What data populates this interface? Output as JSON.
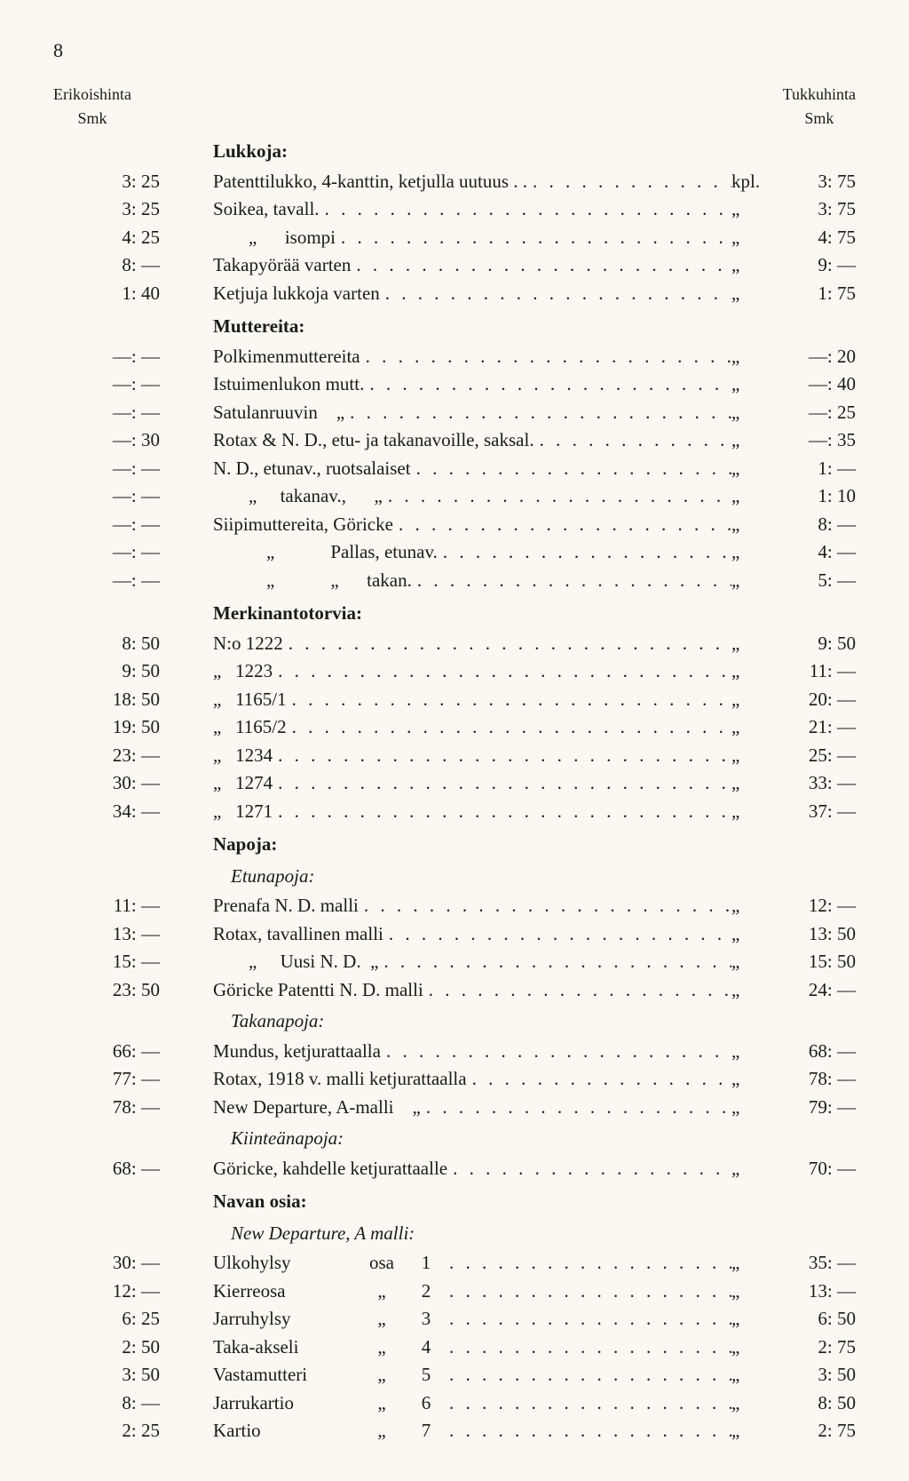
{
  "page_number": "8",
  "header_left_1": "Erikoishinta",
  "header_left_2": "Smk",
  "header_right_1": "Tukkuhinta",
  "header_right_2": "Smk",
  "sections": {
    "lukkoja": {
      "title": "Lukkoja:",
      "rows": [
        {
          "l": "3: 25",
          "d": "Patenttilukko, 4-kanttin, ketjulla uutuus . .",
          "u": "kpl.",
          "r": "3: 75"
        },
        {
          "l": "3: 25",
          "d": "Soikea, tavall.",
          "u": "„",
          "r": "3: 75"
        },
        {
          "l": "4: 25",
          "d": "„      isompi",
          "u": "„",
          "r": "4: 75",
          "indent": 1
        },
        {
          "l": "8: —",
          "d": "Takapyörää varten",
          "u": "„",
          "r": "9: —"
        },
        {
          "l": "1: 40",
          "d": "Ketjuja lukkoja varten",
          "u": "„",
          "r": "1: 75"
        }
      ]
    },
    "muttereita": {
      "title": "Muttereita:",
      "rows": [
        {
          "l": "—: —",
          "d": "Polkimenmuttereita",
          "u": "„",
          "r": "—: 20"
        },
        {
          "l": "—: —",
          "d": "Istuimenlukon mutt.",
          "u": "„",
          "r": "—: 40"
        },
        {
          "l": "—: —",
          "d": "Satulanruuvin    „",
          "u": "„",
          "r": "—: 25"
        },
        {
          "l": "—: 30",
          "d": "Rotax & N. D., etu- ja takanavoille, saksal.",
          "u": "„",
          "r": "—: 35"
        },
        {
          "l": "—: —",
          "d": "N. D., etunav., ruotsalaiset",
          "u": "„",
          "r": "1: —"
        },
        {
          "l": "—: —",
          "d": "„     takanav.,      „",
          "u": "„",
          "r": "1: 10",
          "indent": 1
        },
        {
          "l": "—: —",
          "d": "Siipimuttereita, Göricke",
          "u": "„",
          "r": "8: —"
        },
        {
          "l": "—: —",
          "d": "„            Pallas, etunav.",
          "u": "„",
          "r": "4: —",
          "indent": 2
        },
        {
          "l": "—: —",
          "d": "„            „      takan.",
          "u": "„",
          "r": "5: —",
          "indent": 2
        }
      ]
    },
    "merkinanto": {
      "title": "Merkinantotorvia:",
      "rows": [
        {
          "l": "8: 50",
          "d": "N:o 1222",
          "u": "„",
          "r": "9: 50"
        },
        {
          "l": "9: 50",
          "d": "„   1223",
          "u": "„",
          "r": "11: —"
        },
        {
          "l": "18: 50",
          "d": "„   1165/1",
          "u": "„",
          "r": "20: —"
        },
        {
          "l": "19: 50",
          "d": "„   1165/2",
          "u": "„",
          "r": "21: —"
        },
        {
          "l": "23: —",
          "d": "„   1234",
          "u": "„",
          "r": "25: —"
        },
        {
          "l": "30: —",
          "d": "„   1274",
          "u": "„",
          "r": "33: —"
        },
        {
          "l": "34: —",
          "d": "„   1271",
          "u": "„",
          "r": "37: —"
        }
      ]
    },
    "napoja": {
      "title": "Napoja:",
      "sub1": {
        "title": "Etunapoja:",
        "rows": [
          {
            "l": "11: —",
            "d": "Prenafa N. D. malli",
            "u": "„",
            "r": "12: —"
          },
          {
            "l": "13: —",
            "d": "Rotax, tavallinen malli",
            "u": "„",
            "r": "13: 50"
          },
          {
            "l": "15: —",
            "d": "„     Uusi N. D.  „",
            "u": "„",
            "r": "15: 50",
            "indent": 1
          },
          {
            "l": "23: 50",
            "d": "Göricke Patentti N. D. malli",
            "u": "„",
            "r": "24: —"
          }
        ]
      },
      "sub2": {
        "title": "Takanapoja:",
        "rows": [
          {
            "l": "66: —",
            "d": "Mundus, ketjurattaalla",
            "u": "„",
            "r": "68: —"
          },
          {
            "l": "77: —",
            "d": "Rotax, 1918 v. malli ketjurattaalla",
            "u": "„",
            "r": "78: —"
          },
          {
            "l": "78: —",
            "d": "New Departure, A-malli    „",
            "u": "„",
            "r": "79: —"
          }
        ]
      },
      "sub3": {
        "title": "Kiinteänapoja:",
        "rows": [
          {
            "l": "68: —",
            "d": "Göricke, kahdelle ketjurattaalle",
            "u": "„",
            "r": "70: —"
          }
        ]
      }
    },
    "navanosia": {
      "title": "Navan osia:",
      "sub1": {
        "title": "New Departure, A malli:",
        "rows": [
          {
            "l": "30: —",
            "d": "Ulkohylsy",
            "o": "osa",
            "n": "1",
            "u": "„",
            "r": "35: —"
          },
          {
            "l": "12: —",
            "d": "Kierreosa",
            "o": "„",
            "n": "2",
            "u": "„",
            "r": "13: —"
          },
          {
            "l": "6: 25",
            "d": "Jarruhylsy",
            "o": "„",
            "n": "3",
            "u": "„",
            "r": "6: 50"
          },
          {
            "l": "2: 50",
            "d": "Taka-akseli",
            "o": "„",
            "n": "4",
            "u": "„",
            "r": "2: 75"
          },
          {
            "l": "3: 50",
            "d": "Vastamutteri",
            "o": "„",
            "n": "5",
            "u": "„",
            "r": "3: 50"
          },
          {
            "l": "8: —",
            "d": "Jarrukartio",
            "o": "„",
            "n": "6",
            "u": "„",
            "r": "8: 50"
          },
          {
            "l": "2: 25",
            "d": "Kartio",
            "o": "„",
            "n": "7",
            "u": "„",
            "r": "2: 75"
          }
        ]
      }
    }
  }
}
